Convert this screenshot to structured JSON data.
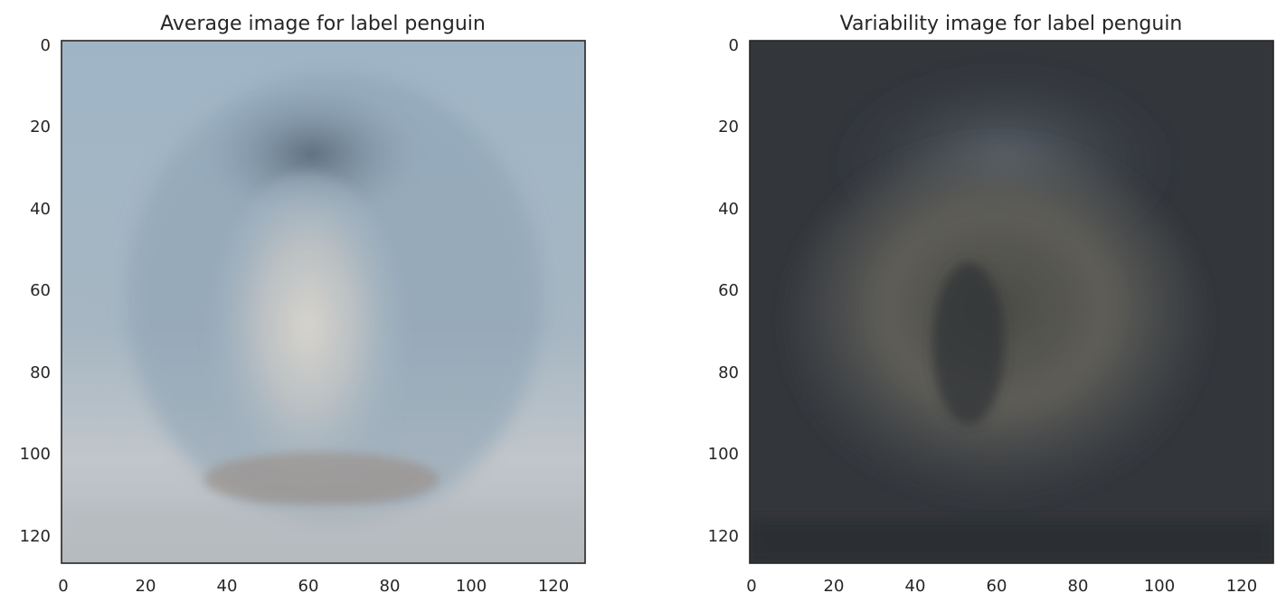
{
  "chart_data": [
    {
      "type": "heatmap",
      "title": "Average image for label penguin",
      "xlabel": "",
      "ylabel": "",
      "xlim": [
        0,
        127
      ],
      "ylim": [
        127,
        0
      ],
      "xticks": [
        "0",
        "20",
        "40",
        "60",
        "80",
        "100",
        "120"
      ],
      "yticks": [
        "0",
        "20",
        "40",
        "60",
        "80",
        "100",
        "120"
      ],
      "grid": false,
      "colors": {
        "sky": "#9ab0c0",
        "body_dark": "#6e8292",
        "belly": "#c9c8c2",
        "feet": "#9a8a80",
        "ground": "#b7bcc1"
      }
    },
    {
      "type": "heatmap",
      "title": "Variability image for label penguin",
      "xlabel": "",
      "ylabel": "",
      "xlim": [
        0,
        127
      ],
      "ylim": [
        127,
        0
      ],
      "xticks": [
        "0",
        "20",
        "40",
        "60",
        "80",
        "100",
        "120"
      ],
      "yticks": [
        "0",
        "20",
        "40",
        "60",
        "80",
        "100",
        "120"
      ],
      "grid": false,
      "colors": {
        "background": "#33363b",
        "halo": "#545d66",
        "streaks": "#5f5e58",
        "core": "#3a3d40"
      }
    }
  ]
}
